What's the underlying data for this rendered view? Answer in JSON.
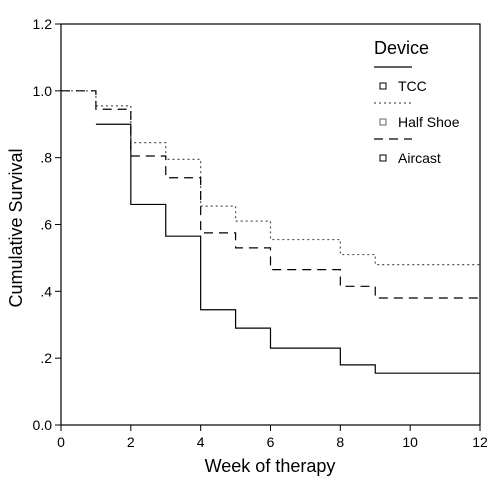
{
  "chart_data": {
    "type": "line",
    "step": true,
    "title": "",
    "xlabel": "Week of therapy",
    "ylabel": "Cumulative Survival",
    "xlim": [
      0,
      12
    ],
    "ylim": [
      0,
      1.2
    ],
    "x_ticks": [
      0,
      2,
      4,
      6,
      8,
      10,
      12
    ],
    "x_tick_labels": [
      "0",
      "2",
      "4",
      "6",
      "8",
      "10",
      "12"
    ],
    "y_ticks": [
      0,
      0.2,
      0.4,
      0.6,
      0.8,
      1.0,
      1.2
    ],
    "y_tick_labels": [
      "0.0",
      ".2",
      ".4",
      ".6",
      ".8",
      "1.0",
      "1.2"
    ],
    "grid": false,
    "legend": {
      "title": "Device",
      "placement": "top-right"
    },
    "series": [
      {
        "name": "TCC",
        "style": "solid",
        "color": "#000000",
        "x": [
          1,
          2,
          3,
          4,
          5,
          6,
          8,
          9,
          12
        ],
        "y": [
          0.9,
          0.66,
          0.565,
          0.345,
          0.29,
          0.23,
          0.18,
          0.155,
          0.155
        ]
      },
      {
        "name": "Half Shoe",
        "style": "dotted",
        "color": "#555555",
        "x": [
          0,
          1,
          2,
          3,
          4,
          5,
          6,
          8,
          9,
          12
        ],
        "y": [
          1.0,
          0.955,
          0.845,
          0.795,
          0.655,
          0.61,
          0.555,
          0.51,
          0.48,
          0.48
        ]
      },
      {
        "name": "Aircast",
        "style": "dashed",
        "color": "#000000",
        "x": [
          0,
          1,
          2,
          3,
          4,
          5,
          6,
          8,
          9,
          12
        ],
        "y": [
          1.0,
          0.945,
          0.805,
          0.74,
          0.575,
          0.53,
          0.465,
          0.415,
          0.38,
          0.38
        ]
      }
    ]
  }
}
